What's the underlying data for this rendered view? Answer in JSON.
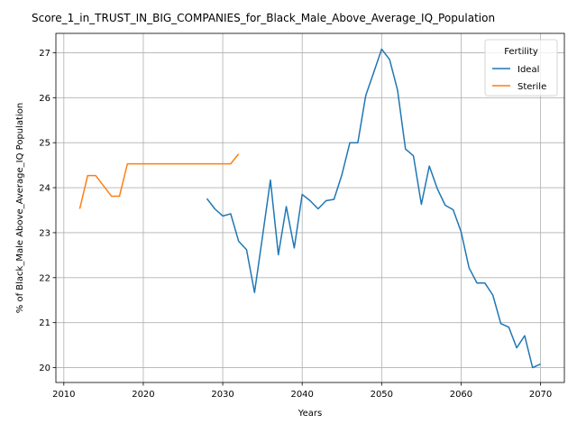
{
  "chart_data": {
    "type": "line",
    "title": "Score_1_in_TRUST_IN_BIG_COMPANIES_for_Black_Male_Above_Average_IQ_Population",
    "xlabel": "Years",
    "ylabel": "% of Black_Male Above_Average_IQ Population",
    "xlim": [
      2009,
      2073
    ],
    "ylim": [
      19.67,
      27.43
    ],
    "xticks": [
      2010,
      2020,
      2030,
      2040,
      2050,
      2060,
      2070
    ],
    "yticks": [
      20,
      21,
      22,
      23,
      24,
      25,
      26,
      27
    ],
    "grid": true,
    "legend": {
      "title": "Fertility",
      "placement": "top-right"
    },
    "series": [
      {
        "name": "Ideal",
        "color": "#1f77b4",
        "x": [
          2028,
          2029,
          2030,
          2031,
          2032,
          2033,
          2034,
          2035,
          2036,
          2037,
          2038,
          2039,
          2040,
          2041,
          2042,
          2043,
          2044,
          2045,
          2046,
          2047,
          2048,
          2049,
          2050,
          2051,
          2052,
          2053,
          2054,
          2055,
          2056,
          2057,
          2058,
          2059,
          2060,
          2061,
          2062,
          2063,
          2064,
          2065,
          2066,
          2067,
          2068,
          2069,
          2070
        ],
        "y": [
          23.76,
          23.53,
          23.37,
          23.42,
          22.81,
          22.62,
          21.67,
          22.91,
          24.17,
          22.51,
          23.58,
          22.66,
          23.85,
          23.71,
          23.53,
          23.71,
          23.74,
          24.29,
          25.0,
          25.0,
          26.05,
          26.56,
          27.08,
          26.85,
          26.17,
          24.86,
          24.71,
          23.63,
          24.48,
          23.98,
          23.61,
          23.51,
          23.02,
          22.22,
          21.88,
          21.88,
          21.61,
          20.98,
          20.9,
          20.44,
          20.71,
          20.0,
          20.08
        ]
      },
      {
        "name": "Sterile",
        "color": "#ff7f0e",
        "x": [
          2012,
          2013,
          2014,
          2015,
          2016,
          2017,
          2018,
          2019,
          2020,
          2021,
          2022,
          2023,
          2024,
          2025,
          2026,
          2027,
          2028,
          2029,
          2030,
          2031,
          2032
        ],
        "y": [
          23.53,
          24.27,
          24.27,
          24.04,
          23.81,
          23.81,
          24.53,
          24.53,
          24.53,
          24.53,
          24.53,
          24.53,
          24.53,
          24.53,
          24.53,
          24.53,
          24.53,
          24.53,
          24.53,
          24.53,
          24.75
        ]
      }
    ]
  }
}
